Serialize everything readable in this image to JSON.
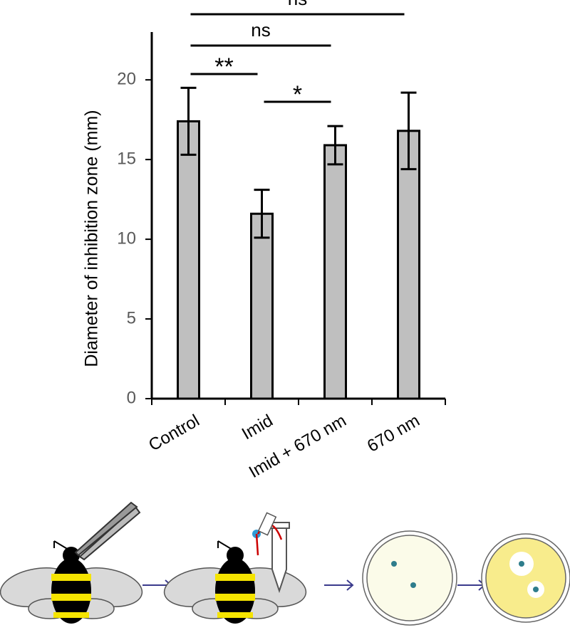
{
  "chart_data": {
    "type": "bar",
    "y_label": "Diameter of inhibition zone (mm)",
    "categories": [
      "Control",
      "Imid",
      "Imid + 670 nm",
      "670 nm"
    ],
    "values": [
      17.4,
      11.6,
      15.9,
      16.8
    ],
    "errors": [
      2.1,
      1.5,
      1.2,
      2.4
    ],
    "color": "#bfbfbf",
    "ylim": [
      0,
      23
    ],
    "yticks": [
      0,
      5,
      10,
      15,
      20
    ],
    "significance": [
      {
        "between": [
          "Control",
          "670 nm"
        ],
        "label": "ns"
      },
      {
        "between": [
          "Control",
          "Imid + 670 nm"
        ],
        "label": "ns"
      },
      {
        "between": [
          "Control",
          "Imid"
        ],
        "label": "**"
      },
      {
        "between": [
          "Imid",
          "Imid + 670 nm"
        ],
        "label": "*"
      }
    ]
  }
}
